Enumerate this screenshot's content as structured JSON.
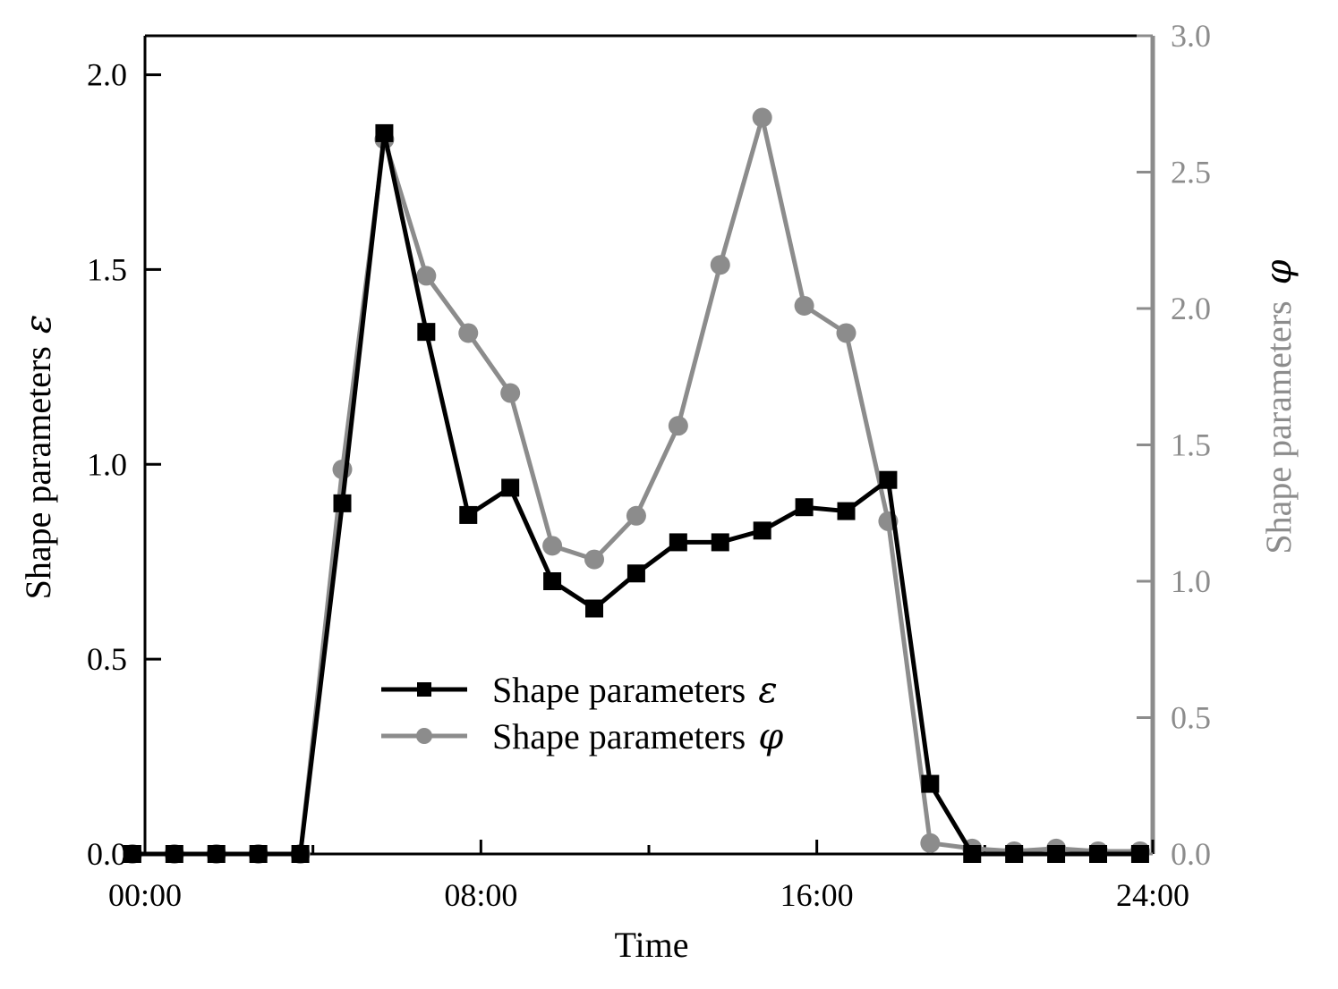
{
  "chart_data": {
    "type": "line",
    "xlabel": "Time",
    "x_tick_labels": [
      "00:00",
      "08:00",
      "16:00",
      "24:00"
    ],
    "x_tick_values": [
      0,
      8,
      16,
      24
    ],
    "xlim": [
      0,
      24
    ],
    "x_hours": [
      0,
      1,
      2,
      3,
      4,
      5,
      6,
      7,
      8,
      9,
      10,
      11,
      12,
      13,
      14,
      15,
      16,
      17,
      18,
      19,
      20,
      21,
      22,
      23
    ],
    "left_axis": {
      "label": "Shape parameters",
      "symbol": "ε",
      "ylim": [
        0,
        2.1
      ],
      "ticks": [
        0,
        0.5,
        1.0,
        1.5,
        2.0
      ],
      "tick_labels": [
        "0.0",
        "0.5",
        "1.0",
        "1.5",
        "2.0"
      ],
      "color": "#000000"
    },
    "right_axis": {
      "label": "Shape parameters",
      "symbol": "φ",
      "ylim": [
        0,
        3.0
      ],
      "ticks": [
        0,
        0.5,
        1.0,
        1.5,
        2.0,
        2.5,
        3.0
      ],
      "tick_labels": [
        "0.0",
        "0.5",
        "1.0",
        "1.5",
        "2.0",
        "2.5",
        "3.0"
      ],
      "color": "#8c8c8c"
    },
    "series": [
      {
        "name": "Shape parameters",
        "symbol": "ε",
        "axis": "left",
        "marker": "square",
        "color": "#000000",
        "x": [
          -0.3,
          0.7,
          1.7,
          2.7,
          3.7,
          4.7,
          5.7,
          6.7,
          7.7,
          8.7,
          9.7,
          10.7,
          11.7,
          12.7,
          13.7,
          14.7,
          15.7,
          16.7,
          17.7,
          18.7,
          19.7,
          20.7,
          21.7,
          22.7,
          23.7
        ],
        "values": [
          0.0,
          0.0,
          0.0,
          0.0,
          0.0,
          0.9,
          1.85,
          1.34,
          0.87,
          0.94,
          0.7,
          0.63,
          0.72,
          0.8,
          0.8,
          0.83,
          0.89,
          0.88,
          0.96,
          0.18,
          0.0,
          0.0,
          0.0,
          0.0,
          0.0
        ]
      },
      {
        "name": "Shape parameters",
        "symbol": "φ",
        "axis": "right",
        "marker": "circle",
        "color": "#8c8c8c",
        "x": [
          -0.3,
          0.7,
          1.7,
          2.7,
          3.7,
          4.7,
          5.7,
          6.7,
          7.7,
          8.7,
          9.7,
          10.7,
          11.7,
          12.7,
          13.7,
          14.7,
          15.7,
          16.7,
          17.7,
          18.7,
          19.7,
          20.7,
          21.7,
          22.7,
          23.7
        ],
        "values": [
          0.0,
          0.0,
          0.0,
          0.0,
          0.0,
          1.41,
          2.62,
          2.12,
          1.91,
          1.69,
          1.13,
          1.08,
          1.24,
          1.57,
          2.16,
          2.7,
          2.01,
          1.91,
          1.22,
          0.04,
          0.02,
          0.01,
          0.02,
          0.01,
          0.01
        ]
      }
    ],
    "legend": {
      "placement": "center-bottom",
      "entries": [
        {
          "label": "Shape parameters",
          "symbol": "ε"
        },
        {
          "label": "Shape parameters",
          "symbol": "φ"
        }
      ]
    }
  }
}
